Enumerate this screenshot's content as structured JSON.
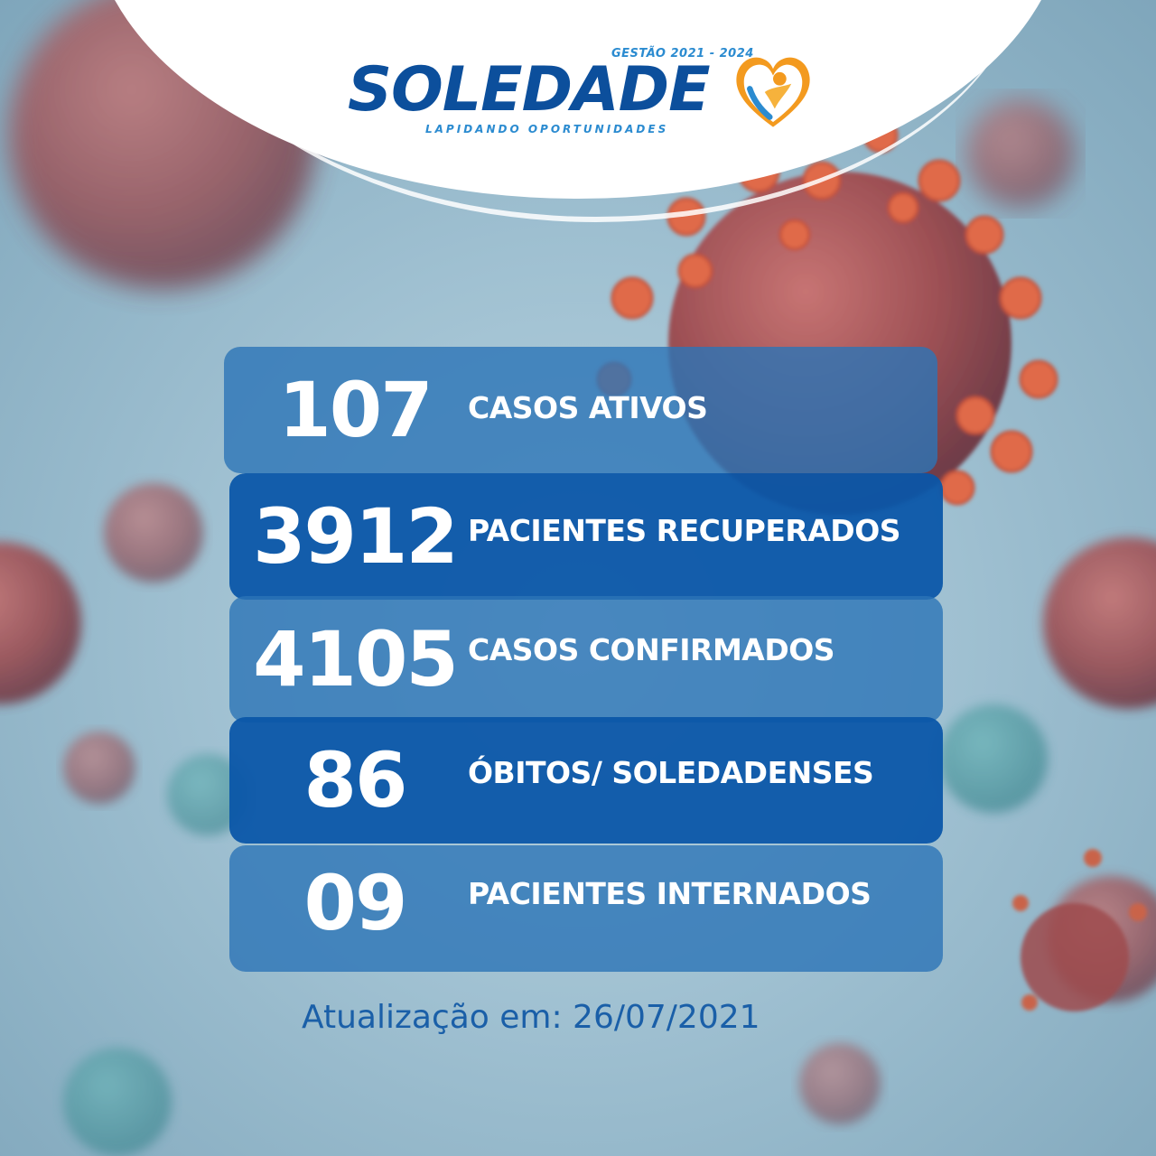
{
  "brand": {
    "name": "SOLEDADE",
    "term": "GESTÃO 2021 - 2024",
    "tagline": "LAPIDANDO OPORTUNIDADES"
  },
  "stats": [
    {
      "value": "107",
      "label": "CASOS ATIVOS"
    },
    {
      "value": "3912",
      "label": "PACIENTES RECUPERADOS"
    },
    {
      "value": "4105",
      "label": "CASOS CONFIRMADOS"
    },
    {
      "value": "86",
      "label": "ÓBITOS/ SOLEDADENSES"
    },
    {
      "value": "09",
      "label": "PACIENTES INTERNADOS"
    }
  ],
  "updated": "Atualização em: 26/07/2021",
  "colors": {
    "brand_blue": "#0c4f9c",
    "accent_orange": "#f39a1f",
    "row_dark": "#0a56a8",
    "row_light": "#2c74b6"
  }
}
